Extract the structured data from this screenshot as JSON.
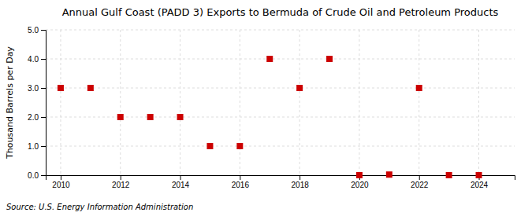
{
  "chart_data": {
    "type": "scatter",
    "title": "Annual Gulf Coast (PADD 3) Exports to Bermuda of Crude Oil and Petroleum Products",
    "y_label": "Thousand Barrels per Day",
    "source": "Source: U.S. Energy Information Administration",
    "x": [
      2010,
      2011,
      2012,
      2013,
      2014,
      2015,
      2016,
      2017,
      2018,
      2019,
      2020,
      2021,
      2022,
      2023,
      2024
    ],
    "values": [
      3.0,
      3.0,
      2.0,
      2.0,
      2.0,
      1.0,
      1.0,
      4.0,
      3.0,
      4.0,
      0.0,
      0.02,
      3.0,
      0.0,
      0.0
    ],
    "color": "#cc0000",
    "marker": "square",
    "xlim": [
      2009.5,
      2025.2
    ],
    "ylim": [
      0.0,
      5.0
    ],
    "xticks": [
      2010,
      2012,
      2014,
      2016,
      2018,
      2020,
      2022,
      2024
    ],
    "yticks": [
      {
        "value": 0.0,
        "label": "0.0"
      },
      {
        "value": 1.0,
        "label": "1.0"
      },
      {
        "value": 2.0,
        "label": "2.0"
      },
      {
        "value": 3.0,
        "label": "3.0"
      },
      {
        "value": 4.0,
        "label": "4.0"
      },
      {
        "value": 5.0,
        "label": "5.0"
      }
    ],
    "grid": true
  }
}
